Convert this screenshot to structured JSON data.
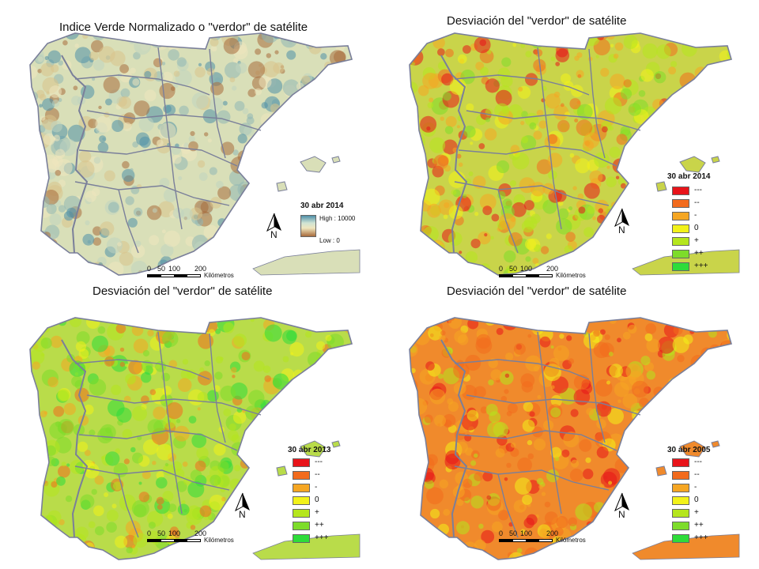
{
  "panels": [
    {
      "id": "ndvi",
      "title": "Indice Verde Normalizado o \"verdor\" de satélite",
      "legend_date": "30 abr 2014",
      "legend_type": "gradient",
      "legend_high": "High : 10000",
      "legend_low": "Low : 0",
      "scale_ticks": [
        "0",
        "50",
        "100",
        "200"
      ],
      "scale_unit": "Kilómetros",
      "north_label": "N"
    },
    {
      "id": "dev-2014",
      "title": "Desviación del \"verdor\" de satélite",
      "legend_date": "30 abr 2014",
      "legend_type": "classes",
      "scale_ticks": [
        "0",
        "50",
        "100",
        "200"
      ],
      "scale_unit": "Kilómetros",
      "north_label": "N"
    },
    {
      "id": "dev-2013",
      "title": "Desviación del \"verdor\" de satélite",
      "legend_date": "30 abr 2013",
      "legend_type": "classes",
      "scale_ticks": [
        "0",
        "50",
        "100",
        "200"
      ],
      "scale_unit": "Kilómetros",
      "north_label": "N"
    },
    {
      "id": "dev-2005",
      "title": "Desviación del \"verdor\" de satélite",
      "legend_date": "30 abr 2005",
      "legend_type": "classes",
      "scale_ticks": [
        "0",
        "50",
        "100",
        "200"
      ],
      "scale_unit": "Kilómetros",
      "north_label": "N"
    }
  ],
  "deviation_classes": [
    {
      "label": "---",
      "color": "#e8141a"
    },
    {
      "label": "--",
      "color": "#f26b1d"
    },
    {
      "label": "-",
      "color": "#f5a623"
    },
    {
      "label": "0",
      "color": "#f2f21a"
    },
    {
      "label": "+",
      "color": "#b5e61d"
    },
    {
      "label": "++",
      "color": "#7ddc2a"
    },
    {
      "label": "+++",
      "color": "#2edc3a"
    }
  ],
  "ndvi_colors": {
    "high": "#4e8fa8",
    "mid": "#efe6be",
    "low": "#a86b3c"
  },
  "map_fill": {
    "ndvi": "#d9dfb8",
    "dev-2014": "#c9d44a",
    "dev-2013": "#b9dc4a",
    "dev-2005": "#f08a2c"
  },
  "boundary_color": "#7a7f9a"
}
